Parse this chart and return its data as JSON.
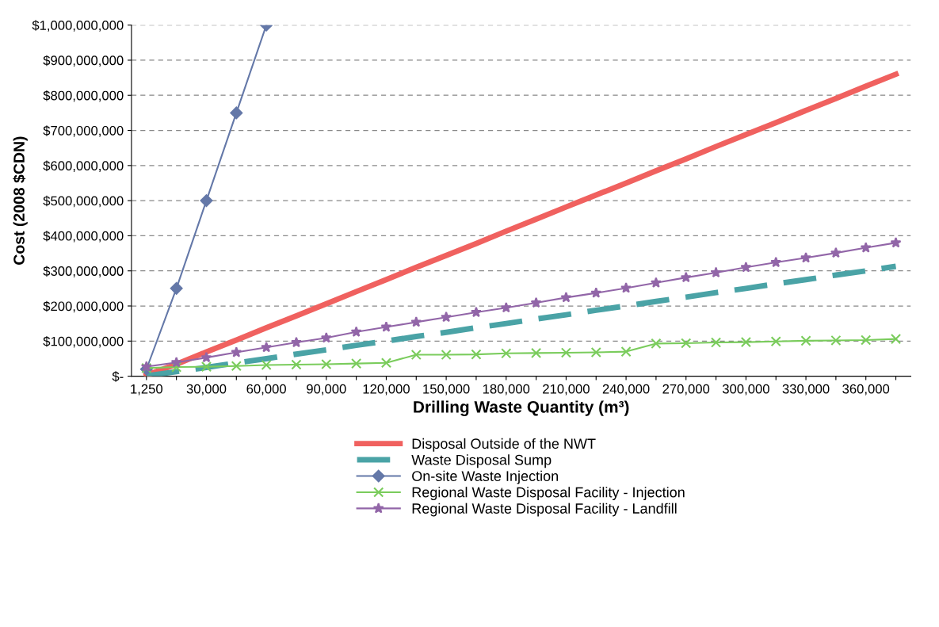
{
  "chart_data": {
    "type": "line",
    "xlabel": "Drilling Waste Quantity (m³)",
    "ylabel": "Cost (2008 $CDN)",
    "categories": [
      "1,250",
      null,
      "30,000",
      null,
      "60,000",
      null,
      "90,000",
      null,
      "120,000",
      null,
      "150,000",
      null,
      "180,000",
      null,
      "210,000",
      null,
      "240,000",
      null,
      "270,000",
      null,
      "300,000",
      null,
      "330,000",
      null,
      "360,000",
      null
    ],
    "series": [
      {
        "name": "Disposal Outside of the NWT",
        "color": "#f0615f",
        "marker": "none",
        "line_style": "solid",
        "values": [
          3000000,
          34000000,
          69000000,
          103000000,
          138000000,
          172000000,
          206000000,
          241000000,
          275000000,
          310000000,
          344000000,
          378000000,
          413000000,
          447000000,
          482000000,
          516000000,
          550000000,
          585000000,
          619000000,
          654000000,
          688000000,
          722000000,
          757000000,
          791000000,
          826000000,
          860000000
        ]
      },
      {
        "name": "Waste Disposal Sump",
        "color": "#4aa3a6",
        "marker": "none",
        "line_style": "dashed",
        "values": [
          1000000,
          13000000,
          25000000,
          38000000,
          50000000,
          63000000,
          75000000,
          88000000,
          100000000,
          113000000,
          125000000,
          138000000,
          150000000,
          163000000,
          175000000,
          188000000,
          200000000,
          213000000,
          225000000,
          238000000,
          250000000,
          263000000,
          275000000,
          288000000,
          300000000,
          313000000
        ]
      },
      {
        "name": "On-site Waste Injection",
        "color": "#6478a8",
        "marker": "diamond",
        "line_style": "solid",
        "values": [
          20000000,
          250000000,
          500000000,
          750000000,
          1000000000,
          null,
          null,
          null,
          null,
          null,
          null,
          null,
          null,
          null,
          null,
          null,
          null,
          null,
          null,
          null,
          null,
          null,
          null,
          null,
          null,
          null
        ]
      },
      {
        "name": "Regional Waste Disposal Facility - Injection",
        "color": "#7acc5c",
        "marker": "cross",
        "line_style": "solid",
        "values": [
          23000000,
          26000000,
          27000000,
          29000000,
          32000000,
          33000000,
          34000000,
          36000000,
          38000000,
          61000000,
          61000000,
          62000000,
          65000000,
          66000000,
          67000000,
          68000000,
          70000000,
          93000000,
          94000000,
          96000000,
          97000000,
          99000000,
          101000000,
          102000000,
          103000000,
          106000000
        ]
      },
      {
        "name": "Regional Waste Disposal Facility - Landfill",
        "color": "#9266a8",
        "marker": "star",
        "line_style": "solid",
        "values": [
          27000000,
          39000000,
          53000000,
          68000000,
          82000000,
          96000000,
          109000000,
          126000000,
          140000000,
          154000000,
          168000000,
          182000000,
          195000000,
          209000000,
          224000000,
          237000000,
          251000000,
          266000000,
          281000000,
          295000000,
          310000000,
          324000000,
          337000000,
          351000000,
          366000000,
          380000000
        ]
      }
    ],
    "ylim": [
      0,
      1000000000
    ],
    "yticks": [
      {
        "value": 0,
        "label": "$-"
      },
      {
        "value": 100000000,
        "label": "$100,000,000"
      },
      {
        "value": 200000000,
        "label": "$200,000,000"
      },
      {
        "value": 300000000,
        "label": "$300,000,000"
      },
      {
        "value": 400000000,
        "label": "$400,000,000"
      },
      {
        "value": 500000000,
        "label": "$500,000,000"
      },
      {
        "value": 600000000,
        "label": "$600,000,000"
      },
      {
        "value": 700000000,
        "label": "$700,000,000"
      },
      {
        "value": 800000000,
        "label": "$800,000,000"
      },
      {
        "value": 900000000,
        "label": "$900,000,000"
      },
      {
        "value": 1000000000,
        "label": "$1,000,000,000"
      }
    ],
    "grid": "y",
    "legend": "bottom"
  }
}
